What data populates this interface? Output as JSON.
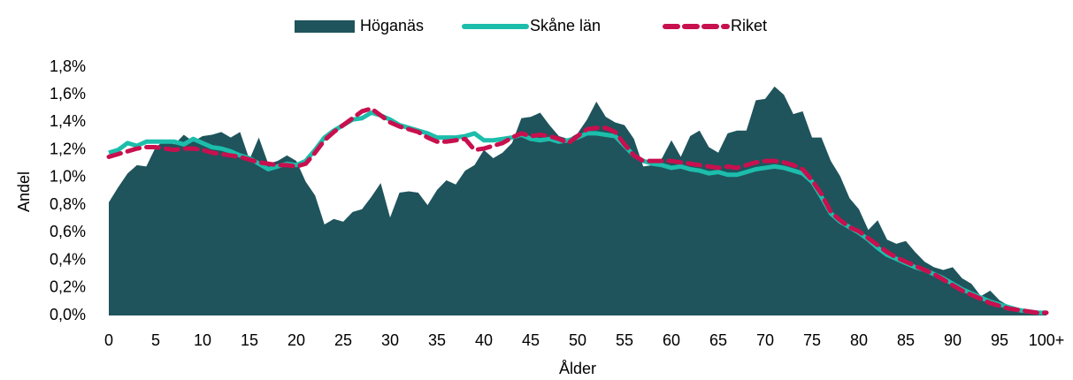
{
  "chart_data": {
    "type": "area",
    "x_label": "Ålder",
    "y_label": "Andel",
    "legend": "top",
    "categories": [
      "0",
      null,
      null,
      null,
      null,
      "5",
      null,
      null,
      null,
      null,
      "10",
      null,
      null,
      null,
      null,
      "15",
      null,
      null,
      null,
      null,
      "20",
      null,
      null,
      null,
      null,
      "25",
      null,
      null,
      null,
      null,
      "30",
      null,
      null,
      null,
      null,
      "35",
      null,
      null,
      null,
      null,
      "40",
      null,
      null,
      null,
      null,
      "45",
      null,
      null,
      null,
      null,
      "50",
      null,
      null,
      null,
      null,
      "55",
      null,
      null,
      null,
      null,
      "60",
      null,
      null,
      null,
      null,
      "65",
      null,
      null,
      null,
      null,
      "70",
      null,
      null,
      null,
      null,
      "75",
      null,
      null,
      null,
      null,
      "80",
      null,
      null,
      null,
      null,
      "85",
      null,
      null,
      null,
      null,
      "90",
      null,
      null,
      null,
      null,
      "95",
      null,
      null,
      null,
      null,
      "100+"
    ],
    "ylim": [
      0,
      1.8
    ],
    "yticks": [
      {
        "value": 0,
        "label": "0,0%"
      },
      {
        "value": 0.2,
        "label": "0,2%"
      },
      {
        "value": 0.4,
        "label": "0,4%"
      },
      {
        "value": 0.6,
        "label": "0,6%"
      },
      {
        "value": 0.8,
        "label": "0,8%"
      },
      {
        "value": 1.0,
        "label": "1,0%"
      },
      {
        "value": 1.2,
        "label": "1,2%"
      },
      {
        "value": 1.4,
        "label": "1,4%"
      },
      {
        "value": 1.6,
        "label": "1,6%"
      },
      {
        "value": 1.8,
        "label": "1,8%"
      }
    ],
    "series": [
      {
        "name": "Höganäs",
        "style": "area",
        "color": "#1f545c",
        "values": [
          0.82,
          0.93,
          1.03,
          1.09,
          1.08,
          1.22,
          1.27,
          1.24,
          1.31,
          1.26,
          1.3,
          1.31,
          1.33,
          1.29,
          1.33,
          1.13,
          1.29,
          1.1,
          1.12,
          1.16,
          1.12,
          0.97,
          0.87,
          0.66,
          0.7,
          0.68,
          0.75,
          0.77,
          0.86,
          0.96,
          0.71,
          0.89,
          0.9,
          0.89,
          0.8,
          0.91,
          0.98,
          0.95,
          1.05,
          1.09,
          1.2,
          1.14,
          1.18,
          1.25,
          1.43,
          1.44,
          1.47,
          1.38,
          1.3,
          1.28,
          1.32,
          1.42,
          1.55,
          1.44,
          1.4,
          1.38,
          1.28,
          1.08,
          1.09,
          1.14,
          1.27,
          1.15,
          1.3,
          1.34,
          1.22,
          1.18,
          1.32,
          1.34,
          1.34,
          1.56,
          1.57,
          1.66,
          1.6,
          1.46,
          1.48,
          1.29,
          1.29,
          1.12,
          1.01,
          0.85,
          0.77,
          0.62,
          0.69,
          0.55,
          0.52,
          0.54,
          0.46,
          0.39,
          0.35,
          0.33,
          0.35,
          0.27,
          0.23,
          0.14,
          0.18,
          0.11,
          0.07,
          0.05,
          0.03,
          0.02,
          0.02
        ]
      },
      {
        "name": "Skåne län",
        "style": "solid",
        "color": "#1cbdab",
        "values": [
          1.18,
          1.2,
          1.25,
          1.23,
          1.26,
          1.26,
          1.26,
          1.26,
          1.24,
          1.28,
          1.25,
          1.22,
          1.21,
          1.19,
          1.16,
          1.14,
          1.1,
          1.06,
          1.08,
          1.1,
          1.09,
          1.12,
          1.2,
          1.29,
          1.34,
          1.38,
          1.42,
          1.43,
          1.47,
          1.45,
          1.42,
          1.38,
          1.36,
          1.34,
          1.32,
          1.29,
          1.29,
          1.29,
          1.3,
          1.32,
          1.27,
          1.27,
          1.28,
          1.29,
          1.31,
          1.28,
          1.27,
          1.28,
          1.26,
          1.27,
          1.29,
          1.32,
          1.32,
          1.31,
          1.3,
          1.23,
          1.16,
          1.12,
          1.1,
          1.09,
          1.07,
          1.08,
          1.06,
          1.05,
          1.03,
          1.04,
          1.02,
          1.02,
          1.04,
          1.06,
          1.07,
          1.08,
          1.07,
          1.05,
          1.03,
          0.97,
          0.86,
          0.74,
          0.68,
          0.64,
          0.6,
          0.55,
          0.49,
          0.44,
          0.41,
          0.38,
          0.35,
          0.33,
          0.3,
          0.27,
          0.23,
          0.19,
          0.16,
          0.13,
          0.1,
          0.08,
          0.06,
          0.04,
          0.03,
          0.02,
          0.02
        ]
      },
      {
        "name": "Riket",
        "style": "dashed",
        "color": "#c8104e",
        "values": [
          1.15,
          1.17,
          1.19,
          1.21,
          1.22,
          1.22,
          1.21,
          1.2,
          1.21,
          1.21,
          1.2,
          1.18,
          1.17,
          1.16,
          1.15,
          1.13,
          1.11,
          1.1,
          1.09,
          1.09,
          1.08,
          1.1,
          1.18,
          1.27,
          1.33,
          1.38,
          1.43,
          1.48,
          1.5,
          1.45,
          1.4,
          1.37,
          1.35,
          1.33,
          1.29,
          1.26,
          1.26,
          1.27,
          1.28,
          1.2,
          1.21,
          1.23,
          1.25,
          1.29,
          1.32,
          1.3,
          1.31,
          1.3,
          1.28,
          1.25,
          1.3,
          1.35,
          1.36,
          1.36,
          1.33,
          1.24,
          1.16,
          1.12,
          1.12,
          1.12,
          1.12,
          1.11,
          1.1,
          1.09,
          1.08,
          1.07,
          1.08,
          1.07,
          1.09,
          1.11,
          1.12,
          1.12,
          1.11,
          1.09,
          1.06,
          0.98,
          0.88,
          0.75,
          0.69,
          0.64,
          0.61,
          0.56,
          0.51,
          0.46,
          0.42,
          0.39,
          0.36,
          0.33,
          0.3,
          0.26,
          0.22,
          0.18,
          0.15,
          0.12,
          0.09,
          0.07,
          0.05,
          0.04,
          0.03,
          0.02,
          0.02
        ]
      }
    ]
  }
}
